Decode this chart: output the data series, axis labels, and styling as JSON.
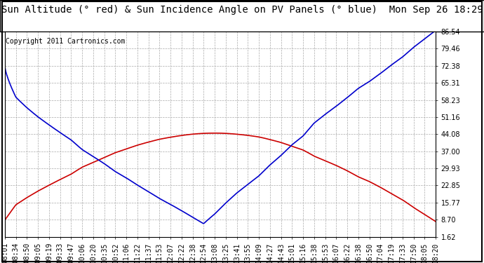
{
  "title": "Sun Altitude (° red) & Sun Incidence Angle on PV Panels (° blue)  Mon Sep 26 18:29",
  "copyright": "Copyright 2011 Cartronics.com",
  "y_min": 1.62,
  "y_max": 86.54,
  "y_ticks": [
    1.62,
    8.7,
    15.77,
    22.85,
    29.93,
    37.0,
    44.08,
    51.16,
    58.23,
    65.31,
    72.38,
    79.46,
    86.54
  ],
  "x_labels": [
    "08:01",
    "08:34",
    "08:50",
    "09:05",
    "09:19",
    "09:33",
    "09:47",
    "10:06",
    "10:20",
    "10:35",
    "10:52",
    "11:06",
    "11:22",
    "11:37",
    "11:53",
    "12:07",
    "12:22",
    "12:38",
    "12:54",
    "13:08",
    "13:25",
    "13:41",
    "13:55",
    "14:09",
    "14:27",
    "14:43",
    "15:01",
    "15:16",
    "15:38",
    "15:53",
    "16:07",
    "16:22",
    "16:38",
    "16:50",
    "17:04",
    "17:19",
    "17:33",
    "17:50",
    "18:05",
    "18:20"
  ],
  "bg_color": "#ffffff",
  "plot_bg_color": "#ffffff",
  "grid_color": "#aaaaaa",
  "red_color": "#cc0000",
  "blue_color": "#0000cc",
  "title_fontsize": 10,
  "tick_fontsize": 7,
  "copyright_fontsize": 7
}
